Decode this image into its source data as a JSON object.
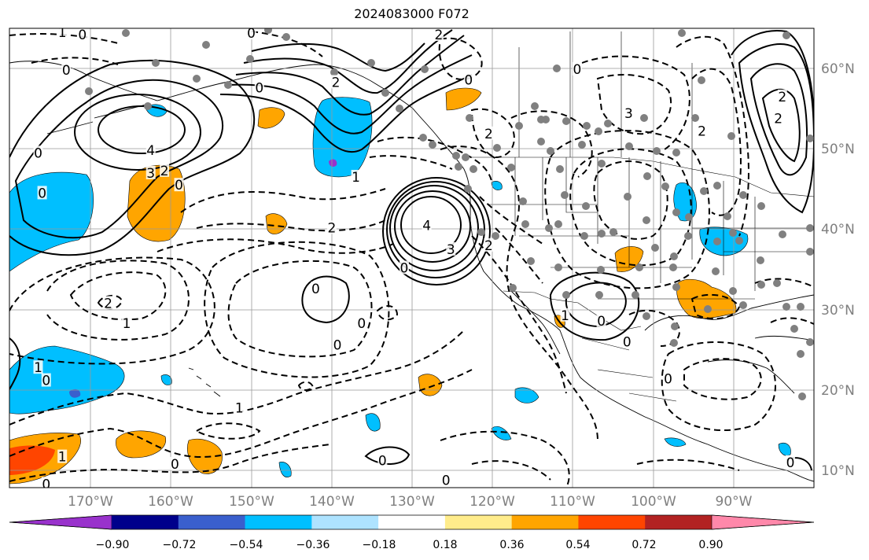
{
  "title": "2024083000 F072",
  "lon_labels": [
    "170°W",
    "160°W",
    "150°W",
    "140°W",
    "130°W",
    "120°W",
    "110°W",
    "100°W",
    "90°W"
  ],
  "lat_labels": [
    "60°N",
    "50°N",
    "40°N",
    "30°N",
    "20°N",
    "10°N"
  ],
  "colorbar": {
    "ticks": [
      "−0.90",
      "−0.72",
      "−0.54",
      "−0.36",
      "−0.18",
      "0.18",
      "0.36",
      "0.54",
      "0.72",
      "0.90"
    ],
    "colors": [
      "#9932cc",
      "#00008b",
      "#3a5fcd",
      "#00bfff",
      "#aee3ff",
      "#ffffff",
      "#ffec8b",
      "#ffa500",
      "#ff4500",
      "#b22222",
      "#ff88aa"
    ]
  },
  "contour_labels": [
    {
      "text": "1",
      "lon": -173.5,
      "lat": 64.5
    },
    {
      "text": "0",
      "lon": -171,
      "lat": 64.2
    },
    {
      "text": "0",
      "lon": -173,
      "lat": 59.8
    },
    {
      "text": "4",
      "lon": -162.5,
      "lat": 49.8
    },
    {
      "text": "3",
      "lon": -162.5,
      "lat": 47
    },
    {
      "text": "2",
      "lon": -160.8,
      "lat": 47.3
    },
    {
      "text": "0",
      "lon": -159,
      "lat": 45.5
    },
    {
      "text": "0",
      "lon": -150,
      "lat": 64.4
    },
    {
      "text": "0",
      "lon": -149,
      "lat": 57.6
    },
    {
      "text": "2",
      "lon": -139.5,
      "lat": 58.3
    },
    {
      "text": "1",
      "lon": -137,
      "lat": 46.5
    },
    {
      "text": "2",
      "lon": -140,
      "lat": 40.2
    },
    {
      "text": "2",
      "lon": -126.7,
      "lat": 64.2
    },
    {
      "text": "0",
      "lon": -123,
      "lat": 58.6
    },
    {
      "text": "2",
      "lon": -120.5,
      "lat": 51.9
    },
    {
      "text": "4",
      "lon": -128.2,
      "lat": 40.5
    },
    {
      "text": "3",
      "lon": -125.2,
      "lat": 37.5
    },
    {
      "text": "0",
      "lon": -131,
      "lat": 35.2
    },
    {
      "text": "2",
      "lon": -120.5,
      "lat": 38
    },
    {
      "text": "0",
      "lon": -142,
      "lat": 32.6
    },
    {
      "text": "0",
      "lon": -136.3,
      "lat": 28.3
    },
    {
      "text": "0",
      "lon": -139.3,
      "lat": 25.6
    },
    {
      "text": "1",
      "lon": -111,
      "lat": 29.3
    },
    {
      "text": "0",
      "lon": -106.5,
      "lat": 28.6
    },
    {
      "text": "0",
      "lon": -103.3,
      "lat": 26
    },
    {
      "text": "3",
      "lon": -103.1,
      "lat": 54.4
    },
    {
      "text": "0",
      "lon": -109.5,
      "lat": 59.9
    },
    {
      "text": "2",
      "lon": -94,
      "lat": 52.2
    },
    {
      "text": "2",
      "lon": -84.5,
      "lat": 53.8
    },
    {
      "text": "2",
      "lon": -84,
      "lat": 56.5
    },
    {
      "text": "2",
      "lon": -167.8,
      "lat": 30.8
    },
    {
      "text": "1",
      "lon": -165.5,
      "lat": 28.3
    },
    {
      "text": "1",
      "lon": -176.5,
      "lat": 22.8
    },
    {
      "text": "0",
      "lon": -175.5,
      "lat": 21.2
    },
    {
      "text": "0",
      "lon": -176.5,
      "lat": 49.5
    },
    {
      "text": "0",
      "lon": -176,
      "lat": 44.5
    },
    {
      "text": "1",
      "lon": -151.5,
      "lat": 17.8
    },
    {
      "text": "0",
      "lon": -159.5,
      "lat": 10.8
    },
    {
      "text": "0",
      "lon": -133.7,
      "lat": 11.2
    },
    {
      "text": "0",
      "lon": -125.8,
      "lat": 8.8
    },
    {
      "text": "1",
      "lon": -173.5,
      "lat": 11.7
    },
    {
      "text": "0",
      "lon": -175.5,
      "lat": 8.3
    },
    {
      "text": "0",
      "lon": -98.2,
      "lat": 21.4
    },
    {
      "text": "0",
      "lon": -83,
      "lat": 11
    }
  ]
}
